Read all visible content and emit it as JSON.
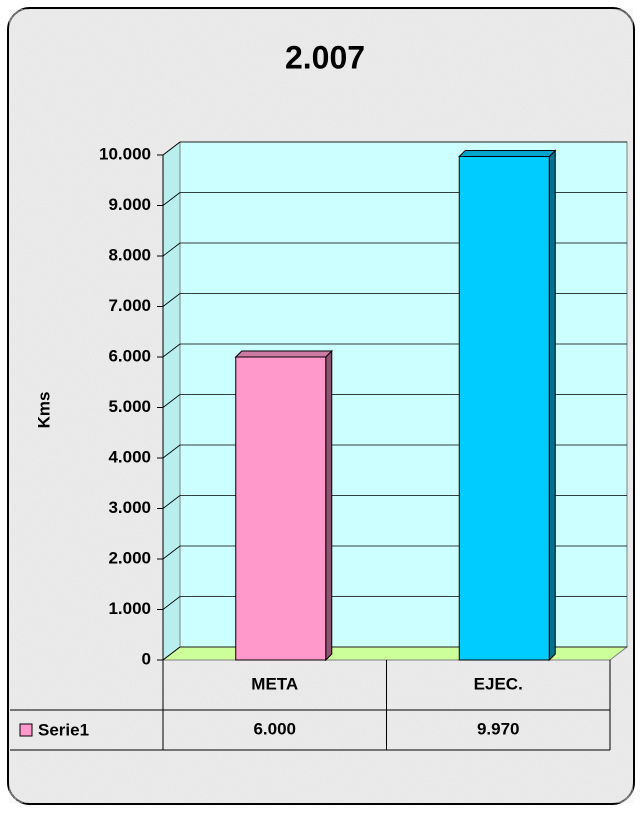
{
  "chart_data": {
    "type": "bar3d",
    "title": "2.007",
    "y_label": "Kms",
    "categories": [
      "META",
      "EJEC."
    ],
    "series": [
      {
        "name": "Serie1",
        "colors": [
          "#ff99cc",
          "#00ccff"
        ],
        "legend_color": "#ff99cc",
        "values": [
          6000,
          9970
        ],
        "value_labels": [
          "6.000",
          "9.970"
        ]
      }
    ],
    "ylim": [
      0,
      10000
    ],
    "yticks": [
      0,
      {
        "value": 1000,
        "label": "1.000"
      },
      {
        "value": 2000,
        "label": "2.000"
      },
      {
        "value": 3000,
        "label": "3.000"
      },
      {
        "value": 4000,
        "label": "4.000"
      },
      {
        "value": 5000,
        "label": "5.000"
      },
      {
        "value": 6000,
        "label": "6.000"
      },
      {
        "value": 7000,
        "label": "7.000"
      },
      {
        "value": 8000,
        "label": "8.000"
      },
      {
        "value": 9000,
        "label": "9.000"
      },
      {
        "value": 10000,
        "label": "10.000"
      }
    ],
    "grid": true,
    "data_table": true
  }
}
